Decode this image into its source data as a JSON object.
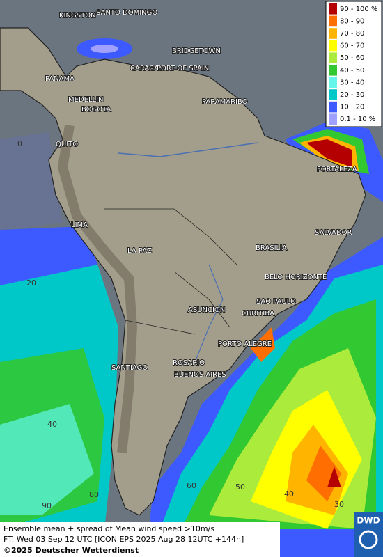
{
  "legend": [
    {
      "label": "90 - 100 %",
      "color": "#b40000"
    },
    {
      "label": "80 - 90",
      "color": "#ff6e00"
    },
    {
      "label": "70 - 80",
      "color": "#ffb400"
    },
    {
      "label": "60 - 70",
      "color": "#ffff00"
    },
    {
      "label": "50 - 60",
      "color": "#aaeb3c"
    },
    {
      "label": "40 - 50",
      "color": "#32c832"
    },
    {
      "label": "30 - 40",
      "color": "#64f5eb"
    },
    {
      "label": "20 - 30",
      "color": "#00c8c8"
    },
    {
      "label": "10 - 20",
      "color": "#3c5aff"
    },
    {
      "label": "0.1 - 10 %",
      "color": "#a0a0ff"
    }
  ],
  "cities": [
    "KINGSTON",
    "SANTO DOMINGO",
    "BRIDGETOWN",
    "CARACAS",
    "PORT OF SPAIN",
    "PANAMA",
    "MEDELLIN",
    "BOGOTA",
    "PARAMARIBO",
    "QUITO",
    "FORTALEZA",
    "LIMA",
    "SALVADOR",
    "LA PAZ",
    "BRASILIA",
    "BELO HORIZONTE",
    "SAO PAULO",
    "ASUNCION",
    "CURITIBA",
    "PORTO ALEGRE",
    "ROSARIO",
    "SANTIAGO",
    "BUENOS AIRES"
  ],
  "grid_labels": [
    "0",
    "20",
    "40",
    "90",
    "80",
    "60",
    "50",
    "40",
    "30"
  ],
  "footer": {
    "line1": "Ensemble mean + spread of Mean wind speed >10m/s",
    "line2": "FT: Wed 03 Sep 12 UTC [ICON EPS 2025 Aug 28 12UTC +144h]",
    "copyright": "©2025 Deutscher Wetterdienst"
  },
  "logo": "DWD"
}
